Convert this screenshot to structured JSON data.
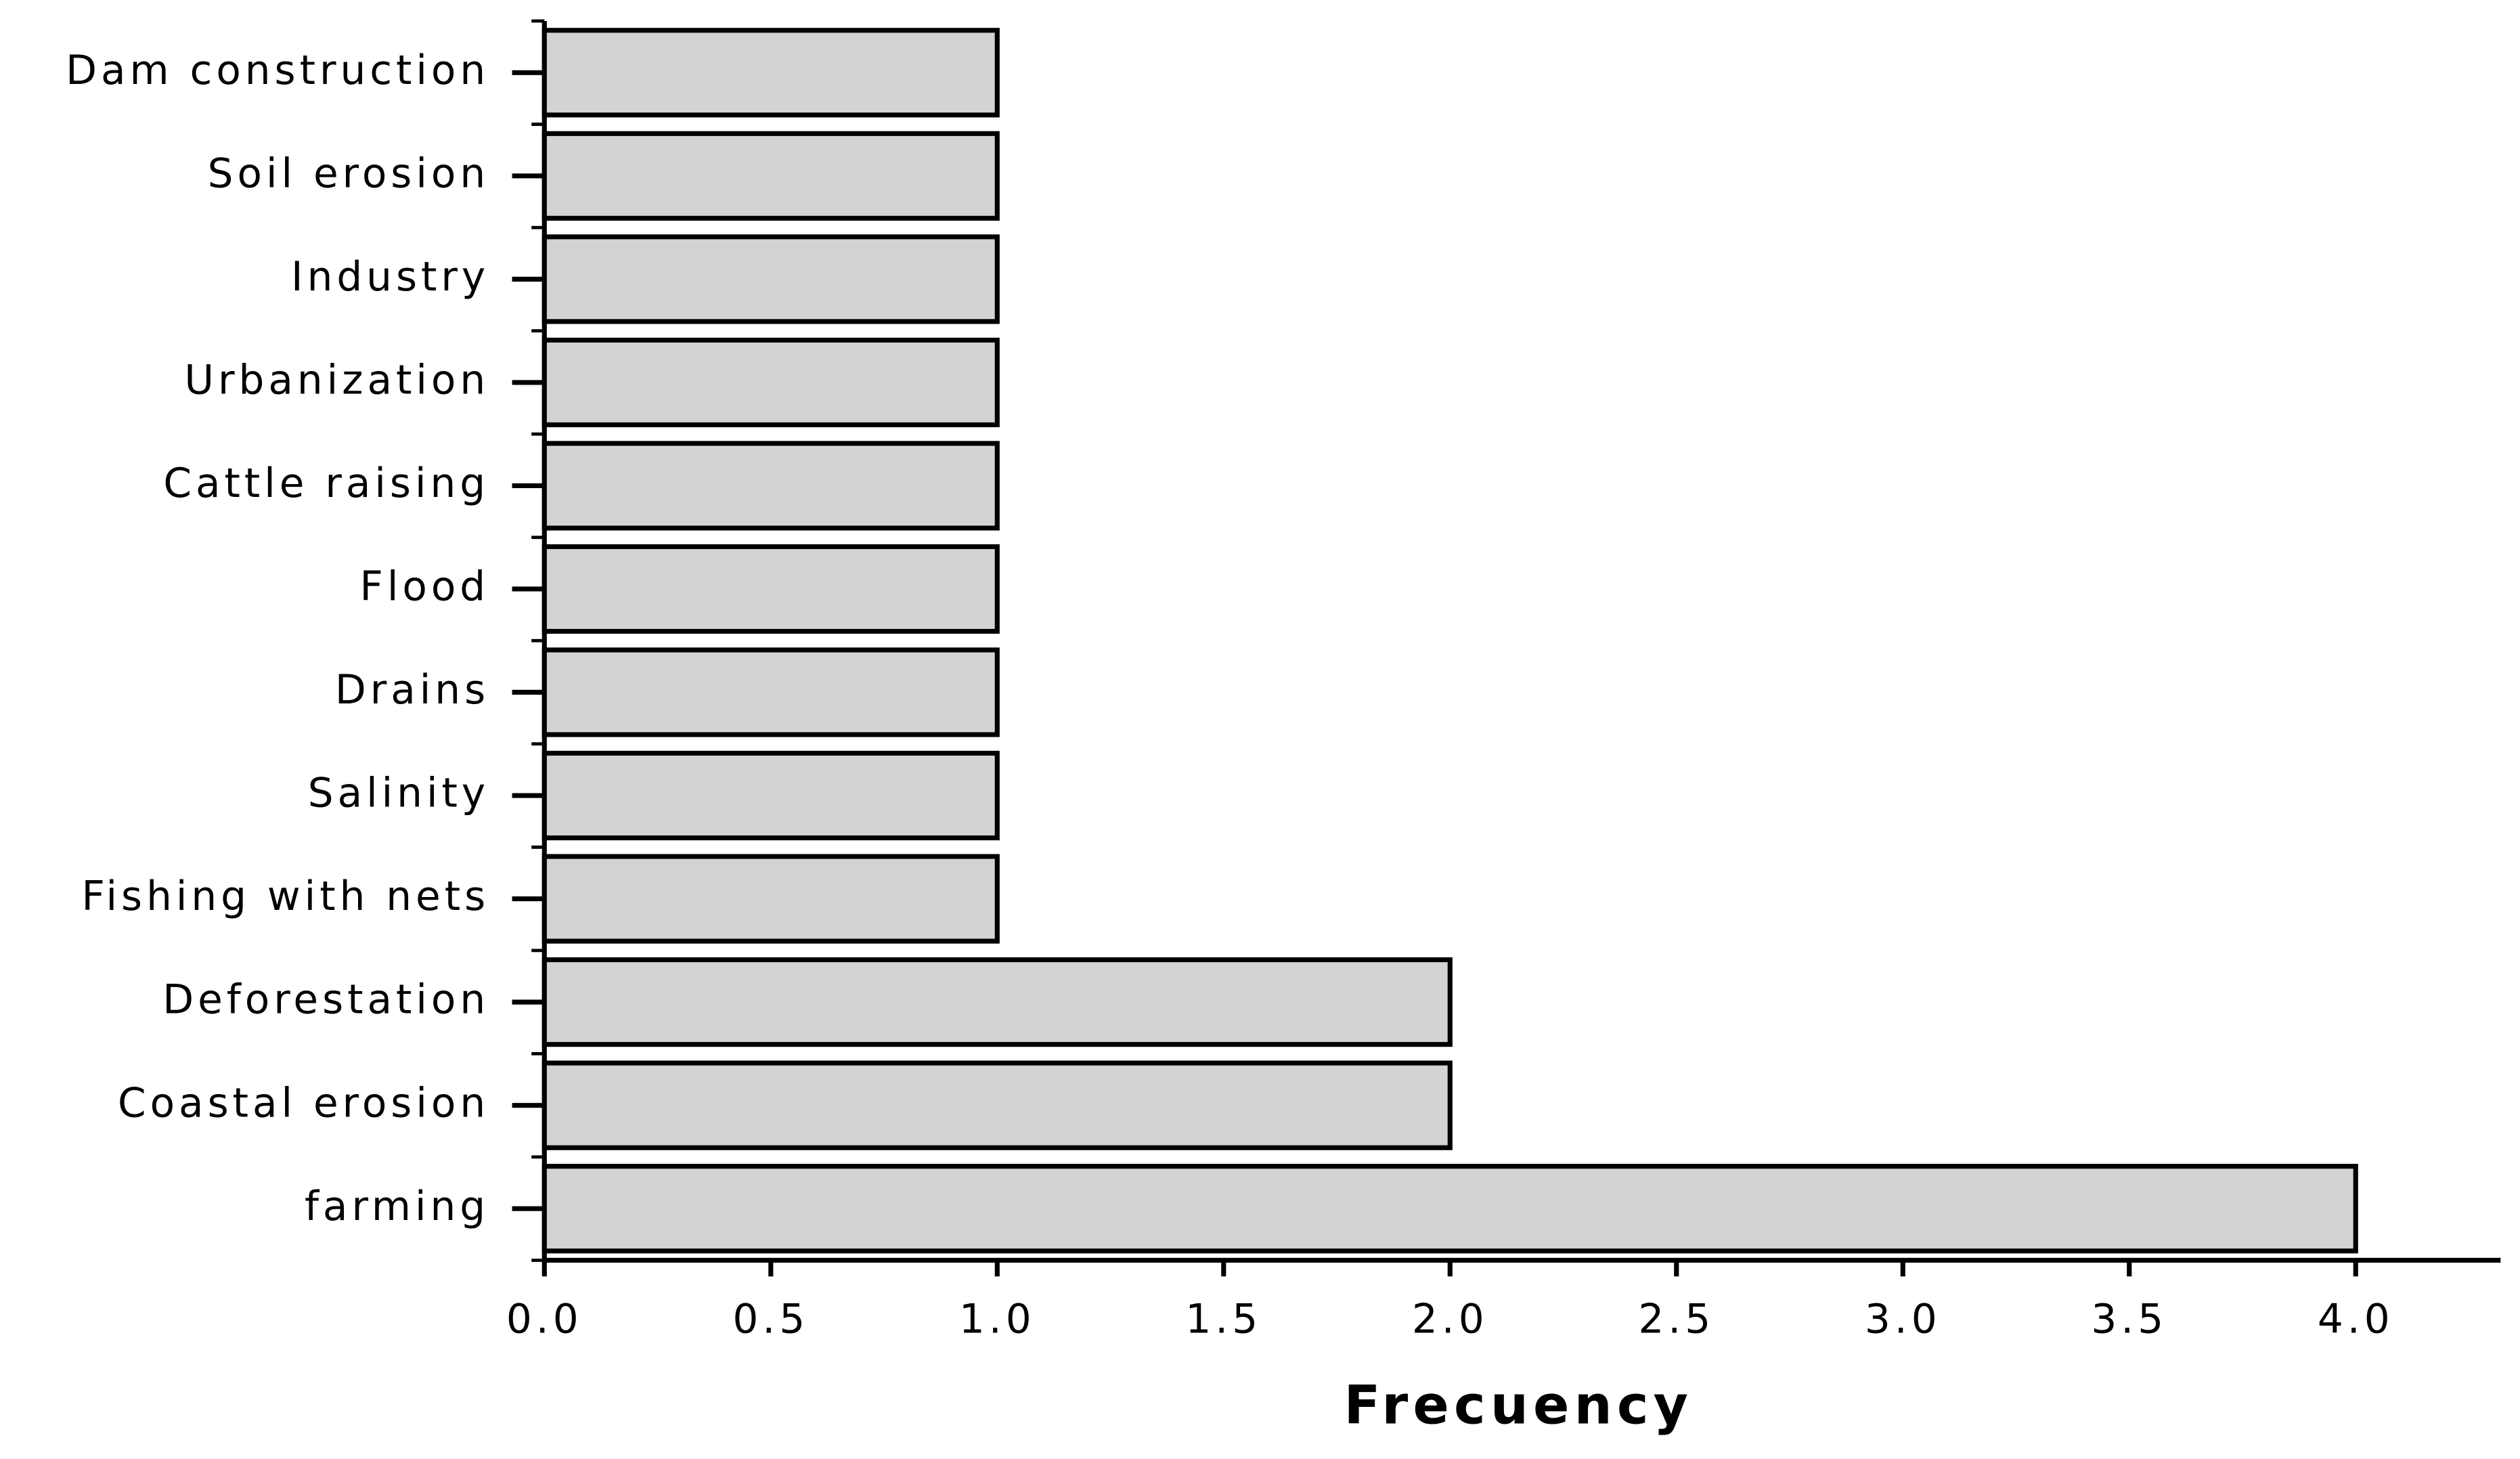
{
  "chart_data": {
    "type": "bar",
    "orientation": "horizontal",
    "xlabel": "Frecuency",
    "categories": [
      "Dam construction",
      "Soil erosion",
      "Industry",
      "Urbanization",
      "Cattle raising",
      "Flood",
      "Drains",
      "Salinity",
      "Fishing with nets",
      "Deforestation",
      "Coastal erosion",
      "farming"
    ],
    "values": [
      1,
      1,
      1,
      1,
      1,
      1,
      1,
      1,
      1,
      2,
      2,
      4
    ],
    "color": "#d3d3d3",
    "xlim": [
      0,
      4.32
    ],
    "xticks": [
      {
        "value": 0,
        "label": "0.0"
      },
      0.5,
      {
        "value": 1,
        "label": "1.0"
      },
      1.5,
      {
        "value": 2,
        "label": "2.0"
      },
      2.5,
      {
        "value": 3,
        "label": "3.0"
      },
      3.5,
      {
        "value": 4,
        "label": "4.0"
      }
    ],
    "grid": false
  }
}
